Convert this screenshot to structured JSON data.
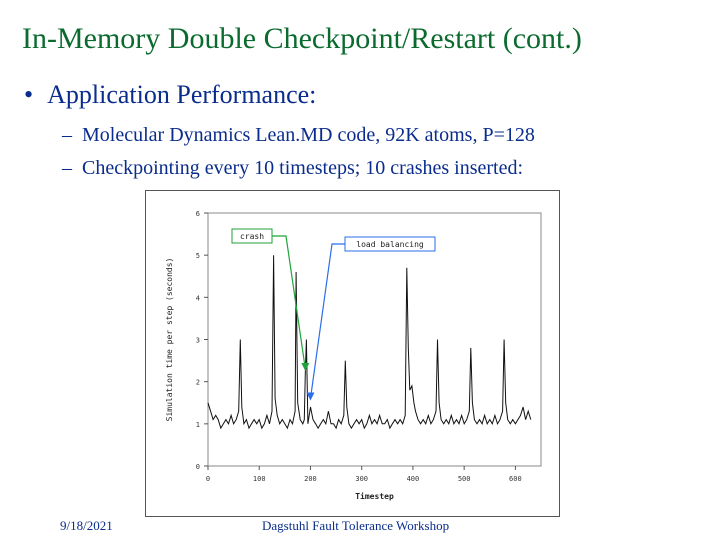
{
  "slide": {
    "title": "In-Memory Double Checkpoint/Restart (cont.)",
    "bullet": "Application Performance:",
    "subbullets": [
      "Molecular Dynamics Lean.MD code, 92K atoms, P=128",
      "Checkpointing every 10 timesteps; 10 crashes inserted:"
    ]
  },
  "footer": {
    "date": "9/18/2021",
    "event": "Dagstuhl Fault Tolerance Workshop"
  },
  "chart_data": {
    "type": "line",
    "xlabel": "Timestep",
    "ylabel": "Simulation time per step (seconds)",
    "xlim": [
      0,
      650
    ],
    "ylim": [
      0,
      6
    ],
    "xticks": [
      0,
      100,
      200,
      300,
      400,
      500,
      600
    ],
    "yticks": [
      0,
      1,
      2,
      3,
      4,
      5,
      6
    ],
    "annotations": [
      {
        "text": "crash",
        "color": "#1fa33a",
        "x_at": 190,
        "y_at": 2.3
      },
      {
        "text": "load balancing",
        "color": "#2a6ee8",
        "x_at": 200,
        "y_at": 1.6
      }
    ],
    "series": [
      {
        "values": [
          [
            0,
            1.5
          ],
          [
            5,
            1.3
          ],
          [
            10,
            1.1
          ],
          [
            15,
            1.2
          ],
          [
            20,
            1.1
          ],
          [
            25,
            0.9
          ],
          [
            30,
            1.0
          ],
          [
            35,
            1.1
          ],
          [
            40,
            1.0
          ],
          [
            45,
            1.2
          ],
          [
            50,
            1.0
          ],
          [
            55,
            1.1
          ],
          [
            60,
            1.3
          ],
          [
            63,
            3.0
          ],
          [
            66,
            1.4
          ],
          [
            70,
            1.0
          ],
          [
            75,
            1.1
          ],
          [
            80,
            0.9
          ],
          [
            85,
            1.0
          ],
          [
            90,
            1.1
          ],
          [
            95,
            1.0
          ],
          [
            100,
            1.1
          ],
          [
            105,
            0.9
          ],
          [
            110,
            1.0
          ],
          [
            115,
            1.2
          ],
          [
            120,
            1.0
          ],
          [
            125,
            1.3
          ],
          [
            128,
            5.0
          ],
          [
            131,
            1.6
          ],
          [
            135,
            1.2
          ],
          [
            140,
            1.0
          ],
          [
            145,
            1.1
          ],
          [
            150,
            1.0
          ],
          [
            155,
            0.9
          ],
          [
            160,
            1.1
          ],
          [
            165,
            1.0
          ],
          [
            170,
            1.3
          ],
          [
            172,
            4.6
          ],
          [
            175,
            1.5
          ],
          [
            180,
            1.1
          ],
          [
            185,
            1.0
          ],
          [
            188,
            1.1
          ],
          [
            190,
            2.2
          ],
          [
            192,
            3.0
          ],
          [
            195,
            1.0
          ],
          [
            200,
            1.4
          ],
          [
            205,
            1.1
          ],
          [
            210,
            1.0
          ],
          [
            215,
            0.9
          ],
          [
            220,
            1.0
          ],
          [
            225,
            1.1
          ],
          [
            230,
            1.0
          ],
          [
            235,
            1.3
          ],
          [
            240,
            1.0
          ],
          [
            245,
            1.0
          ],
          [
            250,
            0.9
          ],
          [
            255,
            1.1
          ],
          [
            260,
            1.0
          ],
          [
            265,
            1.2
          ],
          [
            268,
            2.5
          ],
          [
            271,
            1.4
          ],
          [
            275,
            1.0
          ],
          [
            280,
            0.9
          ],
          [
            285,
            1.0
          ],
          [
            290,
            1.1
          ],
          [
            295,
            1.0
          ],
          [
            300,
            1.1
          ],
          [
            305,
            0.9
          ],
          [
            310,
            1.0
          ],
          [
            315,
            1.2
          ],
          [
            320,
            1.0
          ],
          [
            325,
            1.1
          ],
          [
            330,
            1.0
          ],
          [
            335,
            1.2
          ],
          [
            340,
            1.0
          ],
          [
            345,
            1.0
          ],
          [
            350,
            1.1
          ],
          [
            355,
            0.9
          ],
          [
            360,
            1.0
          ],
          [
            365,
            1.1
          ],
          [
            370,
            1.0
          ],
          [
            375,
            1.1
          ],
          [
            380,
            1.0
          ],
          [
            385,
            1.2
          ],
          [
            388,
            4.7
          ],
          [
            391,
            2.8
          ],
          [
            394,
            1.8
          ],
          [
            398,
            1.9
          ],
          [
            402,
            1.5
          ],
          [
            405,
            1.3
          ],
          [
            410,
            1.1
          ],
          [
            415,
            1.0
          ],
          [
            420,
            1.1
          ],
          [
            425,
            1.0
          ],
          [
            430,
            1.2
          ],
          [
            435,
            1.0
          ],
          [
            440,
            1.1
          ],
          [
            445,
            1.3
          ],
          [
            448,
            3.0
          ],
          [
            451,
            1.5
          ],
          [
            455,
            1.1
          ],
          [
            460,
            1.0
          ],
          [
            465,
            1.1
          ],
          [
            470,
            1.0
          ],
          [
            475,
            1.2
          ],
          [
            480,
            1.0
          ],
          [
            485,
            1.1
          ],
          [
            490,
            1.0
          ],
          [
            495,
            1.2
          ],
          [
            500,
            1.0
          ],
          [
            505,
            1.1
          ],
          [
            510,
            1.3
          ],
          [
            513,
            2.8
          ],
          [
            516,
            1.5
          ],
          [
            520,
            1.1
          ],
          [
            525,
            1.0
          ],
          [
            530,
            1.1
          ],
          [
            535,
            1.0
          ],
          [
            540,
            1.2
          ],
          [
            545,
            1.0
          ],
          [
            550,
            1.1
          ],
          [
            555,
            1.0
          ],
          [
            560,
            1.2
          ],
          [
            565,
            1.0
          ],
          [
            570,
            1.1
          ],
          [
            575,
            1.3
          ],
          [
            578,
            3.0
          ],
          [
            581,
            1.5
          ],
          [
            585,
            1.1
          ],
          [
            590,
            1.0
          ],
          [
            595,
            1.1
          ],
          [
            600,
            1.0
          ],
          [
            605,
            1.1
          ],
          [
            610,
            1.2
          ],
          [
            615,
            1.4
          ],
          [
            620,
            1.1
          ],
          [
            625,
            1.3
          ],
          [
            630,
            1.1
          ]
        ]
      }
    ]
  },
  "colors": {
    "title": "#0b6b2e",
    "text": "#0a2c8c",
    "crash": "#1fa33a",
    "load_balancing": "#2a6ee8"
  }
}
